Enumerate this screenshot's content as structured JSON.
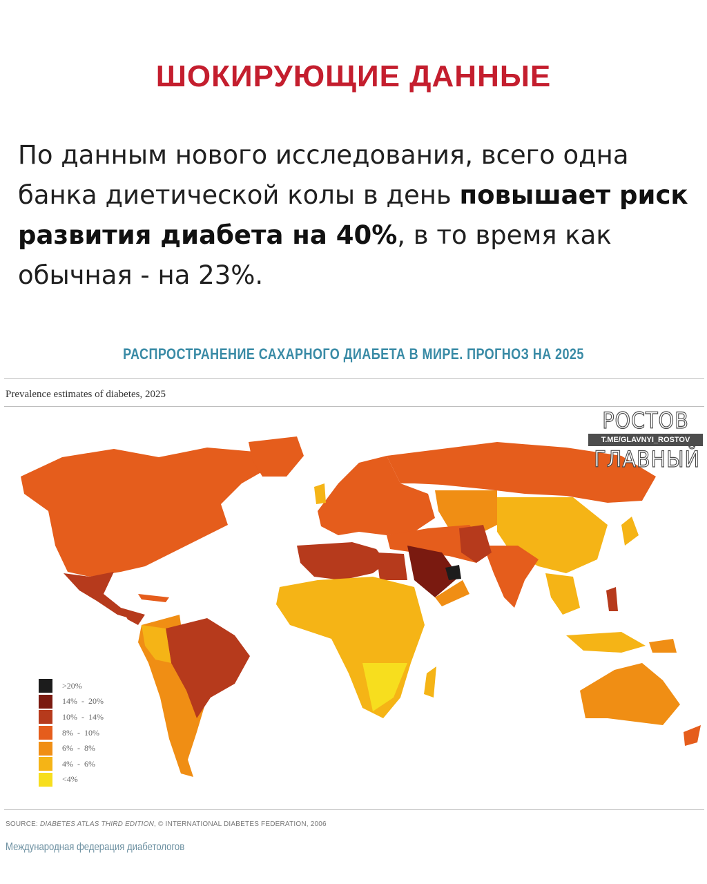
{
  "header": {
    "title": "ШОКИРУЮЩИЕ ДАННЫЕ"
  },
  "lead": {
    "part1": "По данным нового исследования, всего одна банка диетической колы в день ",
    "bold": "повышает риск развития диабета на 40%",
    "part2": ", в то время как обычная - на 23%."
  },
  "map": {
    "title": "РАСПРОСТРАНЕНИЕ САХАРНОГО ДИАБЕТА В МИРЕ. ПРОГНОЗ НА 2025",
    "subtitle": "Prevalence estimates of diabetes, 2025",
    "legend": [
      {
        "label": ">20%",
        "color": "#1c1c1c"
      },
      {
        "label": "14%  -  20%",
        "color": "#7a1a10"
      },
      {
        "label": "10%  -  14%",
        "color": "#b63a1c"
      },
      {
        "label": "8%  -  10%",
        "color": "#e55d1c"
      },
      {
        "label": "6%  -  8%",
        "color": "#f08e14"
      },
      {
        "label": "4%  -  6%",
        "color": "#f5b416"
      },
      {
        "label": "<4%",
        "color": "#f7de1e"
      }
    ]
  },
  "source": {
    "prefix": "SOURCE: ",
    "atlas": "DIABETES ATLAS THIRD EDITION",
    "rest": ", © INTERNATIONAL DIABETES FEDERATION, 2006"
  },
  "federation": "Международная федерация диабетологов",
  "watermark": {
    "top": "РОСТОВ",
    "link": "T.ME/GLAVNYI_ROSTOV",
    "bottom": "ГЛАВНЫЙ"
  }
}
